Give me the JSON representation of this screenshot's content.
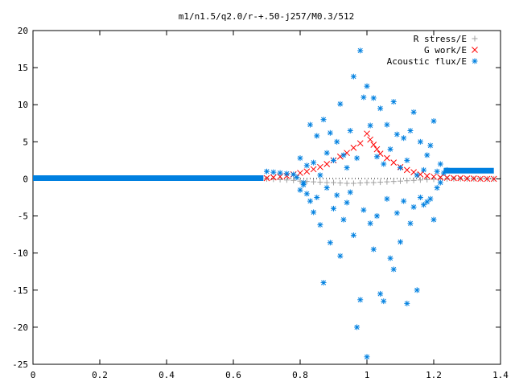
{
  "chart_data": {
    "type": "scatter",
    "title": "m1/n1.5/q2.0/r-+.50-j257/M0.3/512",
    "xlabel": "",
    "ylabel": "",
    "xlim": [
      0,
      1.4
    ],
    "ylim": [
      -25,
      20
    ],
    "x_ticks": [
      "0",
      "0.2",
      "0.4",
      "0.6",
      "0.8",
      "1",
      "1.2",
      "1.4"
    ],
    "y_ticks": [
      "20",
      "15",
      "10",
      "5",
      "0",
      "-5",
      "-10",
      "-15",
      "-20",
      "-25"
    ],
    "x_tick_values": [
      0,
      0.2,
      0.4,
      0.6,
      0.8,
      1.0,
      1.2,
      1.4
    ],
    "y_tick_values": [
      20,
      15,
      10,
      5,
      0,
      -5,
      -10,
      -15,
      -20,
      -25
    ],
    "grid": false,
    "legend_position": "top-right",
    "series": [
      {
        "name": "R stress/E",
        "marker": "plus",
        "color": "#a0a0a0",
        "points": [
          [
            0.7,
            0.0
          ],
          [
            0.72,
            -0.05
          ],
          [
            0.74,
            -0.1
          ],
          [
            0.76,
            -0.15
          ],
          [
            0.78,
            -0.2
          ],
          [
            0.8,
            -0.3
          ],
          [
            0.82,
            -0.35
          ],
          [
            0.84,
            -0.4
          ],
          [
            0.86,
            -0.45
          ],
          [
            0.88,
            -0.5
          ],
          [
            0.9,
            -0.5
          ],
          [
            0.92,
            -0.55
          ],
          [
            0.94,
            -0.6
          ],
          [
            0.96,
            -0.6
          ],
          [
            0.98,
            -0.55
          ],
          [
            1.0,
            -0.5
          ],
          [
            1.02,
            -0.5
          ],
          [
            1.04,
            -0.45
          ],
          [
            1.06,
            -0.4
          ],
          [
            1.08,
            -0.35
          ],
          [
            1.1,
            -0.3
          ],
          [
            1.12,
            -0.25
          ],
          [
            1.14,
            -0.2
          ],
          [
            1.16,
            -0.15
          ],
          [
            1.18,
            -0.1
          ],
          [
            1.2,
            -0.05
          ],
          [
            1.22,
            0.0
          ],
          [
            1.24,
            0.0
          ],
          [
            1.26,
            0.0
          ],
          [
            1.28,
            0.0
          ],
          [
            1.3,
            0.0
          ],
          [
            1.32,
            0.0
          ],
          [
            1.34,
            0.0
          ],
          [
            1.36,
            0.0
          ],
          [
            1.38,
            0.0
          ]
        ]
      },
      {
        "name": "G work/E",
        "marker": "cross",
        "color": "#ff0000",
        "points": [
          [
            0.7,
            0.1
          ],
          [
            0.72,
            0.2
          ],
          [
            0.74,
            0.3
          ],
          [
            0.76,
            0.4
          ],
          [
            0.78,
            0.6
          ],
          [
            0.8,
            0.8
          ],
          [
            0.82,
            1.0
          ],
          [
            0.84,
            1.3
          ],
          [
            0.86,
            1.6
          ],
          [
            0.88,
            2.0
          ],
          [
            0.9,
            2.5
          ],
          [
            0.92,
            3.0
          ],
          [
            0.94,
            3.5
          ],
          [
            0.96,
            4.2
          ],
          [
            0.98,
            4.8
          ],
          [
            1.0,
            6.1
          ],
          [
            1.01,
            5.3
          ],
          [
            1.02,
            4.6
          ],
          [
            1.03,
            4.0
          ],
          [
            1.04,
            3.4
          ],
          [
            1.06,
            2.8
          ],
          [
            1.08,
            2.2
          ],
          [
            1.1,
            1.6
          ],
          [
            1.12,
            1.2
          ],
          [
            1.14,
            0.9
          ],
          [
            1.16,
            0.6
          ],
          [
            1.18,
            0.4
          ],
          [
            1.2,
            0.3
          ],
          [
            1.22,
            0.2
          ],
          [
            1.24,
            0.15
          ],
          [
            1.26,
            0.1
          ],
          [
            1.28,
            0.1
          ],
          [
            1.3,
            0.05
          ],
          [
            1.32,
            0.05
          ],
          [
            1.34,
            0.0
          ],
          [
            1.36,
            0.0
          ],
          [
            1.38,
            0.0
          ]
        ]
      },
      {
        "name": "Acoustic flux/E",
        "marker": "star",
        "color": "#0080e0",
        "baseline_left": {
          "x_from": 0.0,
          "x_to": 0.69,
          "y": 0.1
        },
        "baseline_right": {
          "x_from": 1.23,
          "x_to": 1.38,
          "y": 1.1
        },
        "points": [
          [
            0.7,
            1.0
          ],
          [
            0.72,
            0.9
          ],
          [
            0.74,
            0.8
          ],
          [
            0.76,
            0.7
          ],
          [
            0.78,
            0.6
          ],
          [
            0.8,
            2.8
          ],
          [
            0.8,
            -1.5
          ],
          [
            0.81,
            -0.8
          ],
          [
            0.82,
            1.8
          ],
          [
            0.82,
            -2.0
          ],
          [
            0.83,
            7.3
          ],
          [
            0.83,
            -3.0
          ],
          [
            0.84,
            2.2
          ],
          [
            0.84,
            -4.5
          ],
          [
            0.85,
            5.8
          ],
          [
            0.85,
            -2.5
          ],
          [
            0.86,
            0.5
          ],
          [
            0.86,
            -6.2
          ],
          [
            0.87,
            8.0
          ],
          [
            0.87,
            -14.0
          ],
          [
            0.88,
            3.5
          ],
          [
            0.88,
            -1.2
          ],
          [
            0.89,
            6.2
          ],
          [
            0.89,
            -8.6
          ],
          [
            0.9,
            2.5
          ],
          [
            0.9,
            -4.0
          ],
          [
            0.91,
            5.0
          ],
          [
            0.91,
            -2.2
          ],
          [
            0.92,
            10.1
          ],
          [
            0.92,
            -10.4
          ],
          [
            0.93,
            3.2
          ],
          [
            0.93,
            -5.5
          ],
          [
            0.94,
            1.5
          ],
          [
            0.94,
            -3.2
          ],
          [
            0.95,
            6.5
          ],
          [
            0.95,
            -1.8
          ],
          [
            0.96,
            13.8
          ],
          [
            0.96,
            -7.6
          ],
          [
            0.97,
            2.8
          ],
          [
            0.97,
            -20.0
          ],
          [
            0.98,
            17.3
          ],
          [
            0.98,
            -16.3
          ],
          [
            0.99,
            11.0
          ],
          [
            0.99,
            -4.2
          ],
          [
            1.0,
            12.5
          ],
          [
            1.0,
            -24.0
          ],
          [
            1.01,
            7.2
          ],
          [
            1.01,
            -6.0
          ],
          [
            1.02,
            10.9
          ],
          [
            1.02,
            -9.5
          ],
          [
            1.03,
            3.0
          ],
          [
            1.03,
            -5.0
          ],
          [
            1.04,
            9.5
          ],
          [
            1.04,
            -15.5
          ],
          [
            1.05,
            2.0
          ],
          [
            1.05,
            -16.5
          ],
          [
            1.06,
            7.3
          ],
          [
            1.06,
            -2.7
          ],
          [
            1.07,
            4.0
          ],
          [
            1.07,
            -10.7
          ],
          [
            1.08,
            10.4
          ],
          [
            1.08,
            -12.2
          ],
          [
            1.09,
            6.0
          ],
          [
            1.09,
            -4.6
          ],
          [
            1.1,
            1.5
          ],
          [
            1.1,
            -8.5
          ],
          [
            1.11,
            5.5
          ],
          [
            1.11,
            -3.0
          ],
          [
            1.12,
            2.5
          ],
          [
            1.12,
            -16.8
          ],
          [
            1.13,
            6.5
          ],
          [
            1.13,
            -6.0
          ],
          [
            1.14,
            9.0
          ],
          [
            1.14,
            -3.8
          ],
          [
            1.15,
            0.5
          ],
          [
            1.15,
            -15.0
          ],
          [
            1.16,
            5.0
          ],
          [
            1.16,
            -2.5
          ],
          [
            1.17,
            1.2
          ],
          [
            1.17,
            -3.5
          ],
          [
            1.18,
            3.2
          ],
          [
            1.18,
            -3.1
          ],
          [
            1.19,
            4.5
          ],
          [
            1.19,
            -2.7
          ],
          [
            1.2,
            7.8
          ],
          [
            1.2,
            -5.5
          ],
          [
            1.21,
            1.0
          ],
          [
            1.21,
            -1.2
          ],
          [
            1.22,
            2.0
          ],
          [
            1.22,
            -0.5
          ],
          [
            0.81,
            -0.5
          ],
          [
            0.79,
            0.2
          ],
          [
            1.23,
            0.8
          ],
          [
            1.24,
            1.2
          ]
        ]
      }
    ]
  }
}
